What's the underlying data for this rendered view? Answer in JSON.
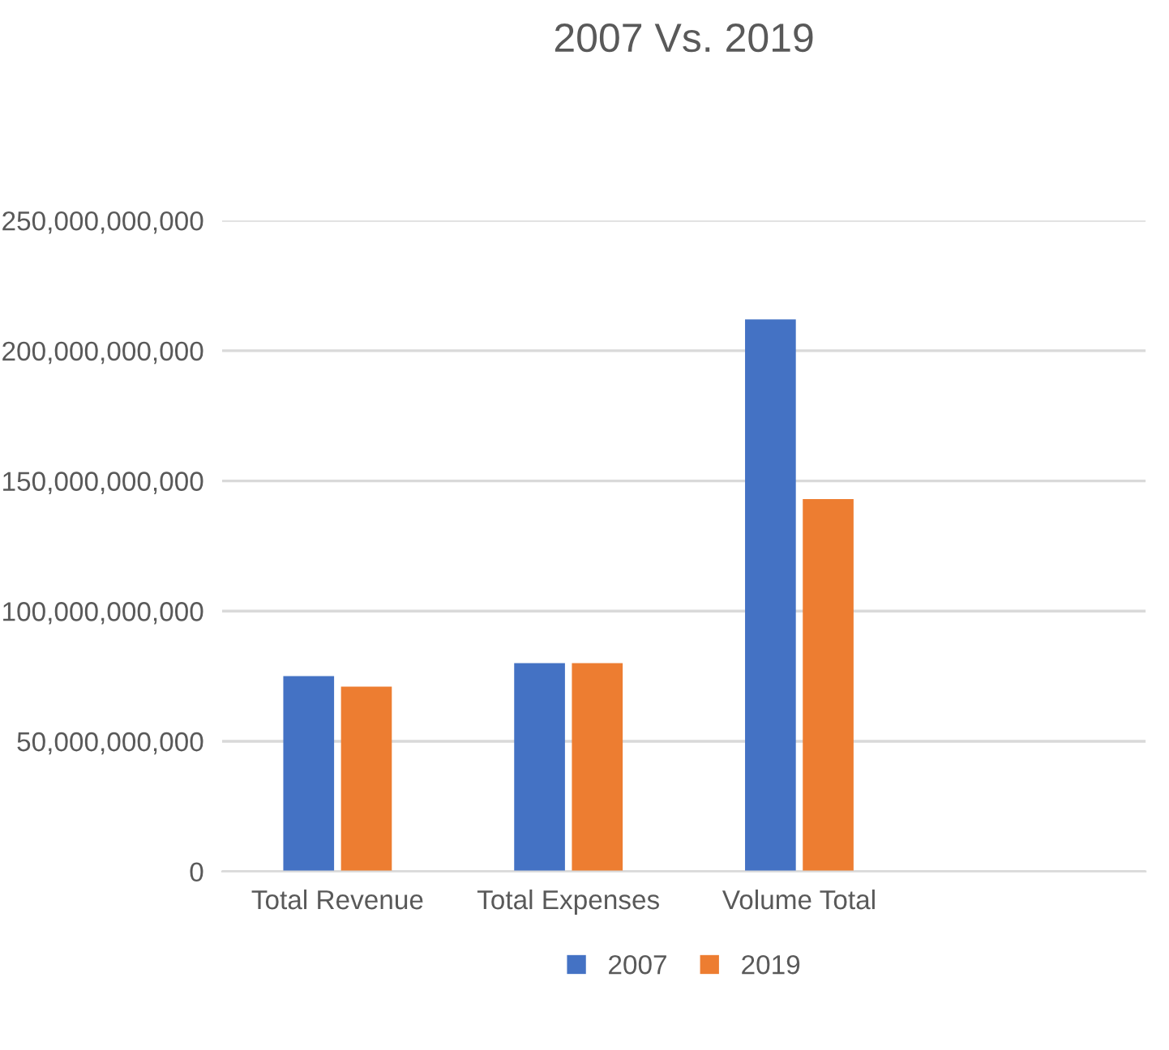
{
  "chart_data": {
    "type": "bar",
    "title": "2007 Vs. 2019",
    "categories": [
      "Total Revenue",
      "Total Expenses",
      "Volume Total",
      null
    ],
    "series": [
      {
        "name": "2007",
        "color": "#4472c4",
        "values": [
          75000000000,
          80000000000,
          212000000000,
          null
        ]
      },
      {
        "name": "2019",
        "color": "#ed7d31",
        "values": [
          71000000000,
          80000000000,
          143000000000,
          null
        ]
      }
    ],
    "ylim": [
      0,
      250000000000
    ],
    "yticks": [
      {
        "value": 0,
        "label": "0"
      },
      {
        "value": 50000000000,
        "label": "50,000,000,000"
      },
      {
        "value": 100000000000,
        "label": "100,000,000,000"
      },
      {
        "value": 150000000000,
        "label": "150,000,000,000"
      },
      {
        "value": 200000000000,
        "label": "200,000,000,000"
      },
      {
        "value": 250000000000,
        "label": "250,000,000,000"
      }
    ],
    "grid": "y",
    "legend": "bottom"
  }
}
